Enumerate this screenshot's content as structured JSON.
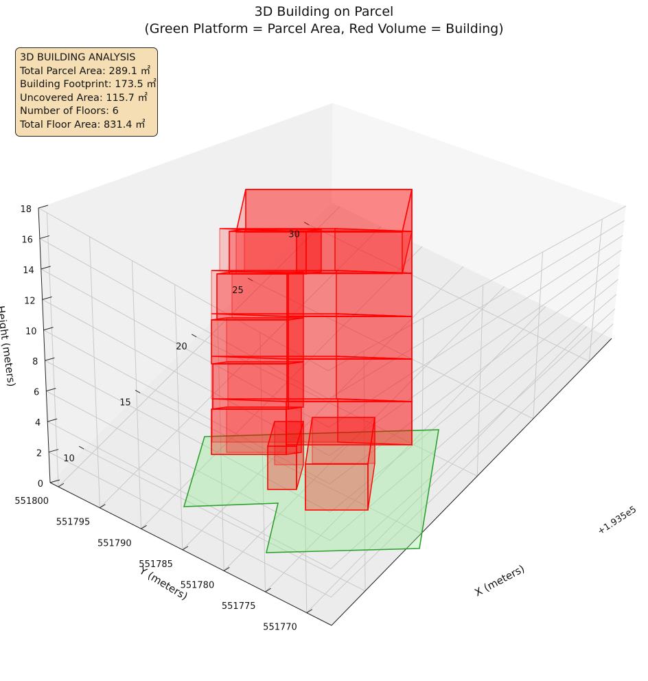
{
  "chart_data": {
    "type": "3d",
    "title": "3D Building on Parcel",
    "subtitle": "(Green Platform = Parcel Area, Red Volume = Building)",
    "xlabel": "X (meters)",
    "ylabel": "Y (meters)",
    "zlabel": "Height (meters)",
    "x_offset_label": "+1.935e5",
    "x_ticks": [
      10,
      15,
      20,
      25,
      30
    ],
    "y_ticks": [
      551770,
      551775,
      551780,
      551785,
      551790,
      551795,
      551800
    ],
    "z_ticks": [
      0,
      2,
      4,
      6,
      8,
      10,
      12,
      14,
      16,
      18
    ],
    "grid": true,
    "legend_box": {
      "heading": "3D BUILDING ANALYSIS",
      "lines": [
        "Total Parcel Area: 289.1 ㎡",
        "Building Footprint: 173.5 ㎡",
        "Uncovered Area: 115.7 ㎡",
        "Number of Floors: 6",
        "Total Floor Area: 831.4 ㎡"
      ]
    },
    "parcel": {
      "color": "#2ca02c",
      "fill": "#90ee90"
    },
    "building": {
      "color": "#ff0000",
      "floors": 6,
      "floor_height": 3
    }
  }
}
